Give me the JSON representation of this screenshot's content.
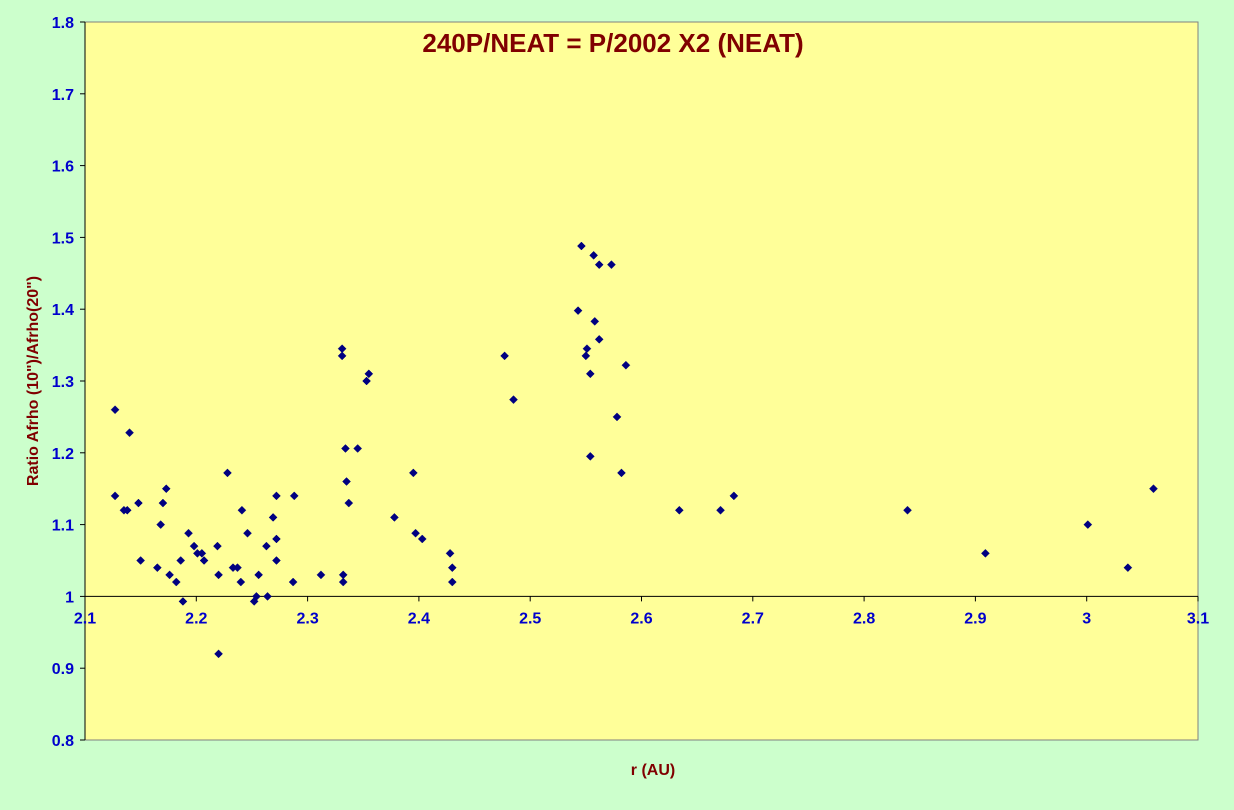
{
  "chart_data": {
    "type": "scatter",
    "title": "240P/NEAT = P/2002 X2 (NEAT)",
    "xlabel": "r (AU)",
    "ylabel": "Ratio Afrho (10\")/Afrho(20\")",
    "xlim": [
      2.1,
      3.1
    ],
    "ylim": [
      0.8,
      1.8
    ],
    "x_ticks": [
      "2.1",
      "2.2",
      "2.3",
      "2.4",
      "2.5",
      "2.6",
      "2.7",
      "2.8",
      "2.9",
      "3",
      "3.1"
    ],
    "y_ticks": [
      "0.8",
      "0.9",
      "1",
      "1.1",
      "1.2",
      "1.3",
      "1.4",
      "1.5",
      "1.6",
      "1.7",
      "1.8"
    ],
    "x_axis_crosses_at": 1.0,
    "grid": false,
    "legend": "none",
    "colors": {
      "background": "#ccffcc",
      "plot_area": "#ffff99",
      "marker": "#000080",
      "title": "#800000",
      "tick_labels": "#0000cc"
    },
    "series": [
      {
        "points": [
          [
            2.127,
            1.26
          ],
          [
            2.127,
            1.14
          ],
          [
            2.135,
            1.12
          ],
          [
            2.138,
            1.12
          ],
          [
            2.14,
            1.228
          ],
          [
            2.148,
            1.13
          ],
          [
            2.15,
            1.05
          ],
          [
            2.165,
            1.04
          ],
          [
            2.168,
            1.1
          ],
          [
            2.17,
            1.13
          ],
          [
            2.173,
            1.15
          ],
          [
            2.176,
            1.03
          ],
          [
            2.182,
            1.02
          ],
          [
            2.186,
            1.05
          ],
          [
            2.188,
            0.993
          ],
          [
            2.193,
            1.088
          ],
          [
            2.198,
            1.07
          ],
          [
            2.201,
            1.06
          ],
          [
            2.205,
            1.06
          ],
          [
            2.207,
            1.05
          ],
          [
            2.219,
            1.07
          ],
          [
            2.22,
            1.03
          ],
          [
            2.22,
            0.92
          ],
          [
            2.228,
            1.172
          ],
          [
            2.233,
            1.04
          ],
          [
            2.237,
            1.04
          ],
          [
            2.24,
            1.02
          ],
          [
            2.241,
            1.12
          ],
          [
            2.246,
            1.088
          ],
          [
            2.252,
            0.993
          ],
          [
            2.254,
            1.0
          ],
          [
            2.256,
            1.03
          ],
          [
            2.263,
            1.07
          ],
          [
            2.264,
            1.0
          ],
          [
            2.269,
            1.11
          ],
          [
            2.272,
            1.05
          ],
          [
            2.272,
            1.08
          ],
          [
            2.272,
            1.14
          ],
          [
            2.287,
            1.02
          ],
          [
            2.288,
            1.14
          ],
          [
            2.312,
            1.03
          ],
          [
            2.331,
            1.345
          ],
          [
            2.331,
            1.335
          ],
          [
            2.332,
            1.03
          ],
          [
            2.332,
            1.02
          ],
          [
            2.334,
            1.206
          ],
          [
            2.335,
            1.16
          ],
          [
            2.337,
            1.13
          ],
          [
            2.345,
            1.206
          ],
          [
            2.353,
            1.3
          ],
          [
            2.355,
            1.31
          ],
          [
            2.378,
            1.11
          ],
          [
            2.395,
            1.172
          ],
          [
            2.397,
            1.088
          ],
          [
            2.403,
            1.08
          ],
          [
            2.428,
            1.06
          ],
          [
            2.43,
            1.04
          ],
          [
            2.43,
            1.02
          ],
          [
            2.477,
            1.335
          ],
          [
            2.485,
            1.274
          ],
          [
            2.543,
            1.398
          ],
          [
            2.546,
            1.488
          ],
          [
            2.55,
            1.335
          ],
          [
            2.551,
            1.345
          ],
          [
            2.554,
            1.195
          ],
          [
            2.554,
            1.31
          ],
          [
            2.557,
            1.475
          ],
          [
            2.558,
            1.383
          ],
          [
            2.562,
            1.462
          ],
          [
            2.562,
            1.358
          ],
          [
            2.573,
            1.462
          ],
          [
            2.578,
            1.25
          ],
          [
            2.582,
            1.172
          ],
          [
            2.586,
            1.322
          ],
          [
            2.634,
            1.12
          ],
          [
            2.671,
            1.12
          ],
          [
            2.683,
            1.14
          ],
          [
            2.839,
            1.12
          ],
          [
            2.909,
            1.06
          ],
          [
            3.001,
            1.1
          ],
          [
            3.037,
            1.04
          ],
          [
            3.06,
            1.15
          ]
        ]
      }
    ]
  }
}
